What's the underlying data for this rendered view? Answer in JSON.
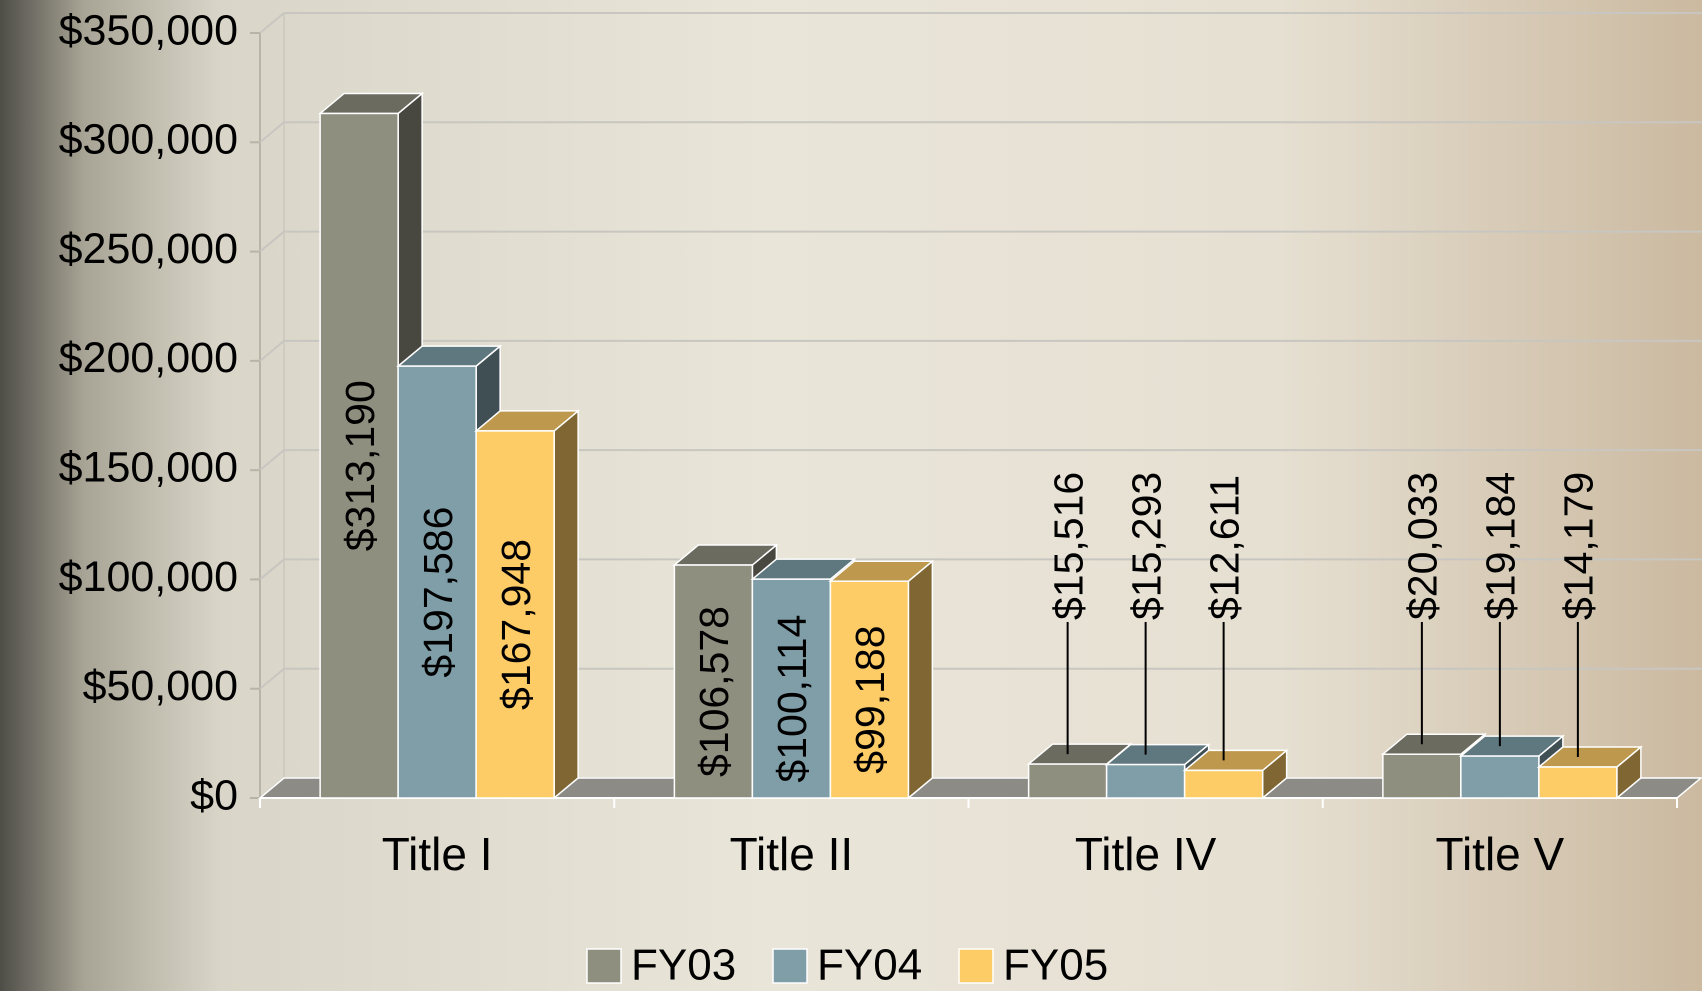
{
  "chart_data": {
    "type": "bar3d",
    "categories": [
      "Title I",
      "Title II",
      "Title IV",
      "Title V"
    ],
    "series": [
      {
        "name": "FY03",
        "color": "#8f8f80",
        "values": [
          313190,
          106578,
          15516,
          20033
        ],
        "value_labels": [
          "$313,190",
          "$106,578",
          "$15,516",
          "$20,033"
        ]
      },
      {
        "name": "FY04",
        "color": "#7f9ea8",
        "values": [
          197586,
          100114,
          15293,
          19184
        ],
        "value_labels": [
          "$197,586",
          "$100,114",
          "$15,293",
          "$19,184"
        ]
      },
      {
        "name": "FY05",
        "color": "#fdcc66",
        "values": [
          167948,
          99188,
          12611,
          14179
        ],
        "value_labels": [
          "$167,948",
          "$99,188",
          "$12,611",
          "$14,179"
        ]
      }
    ],
    "ylim": [
      0,
      350000
    ],
    "yticks": [
      {
        "value": 0,
        "label": "$0"
      },
      {
        "value": 50000,
        "label": "$50,000"
      },
      {
        "value": 100000,
        "label": "$100,000"
      },
      {
        "value": 150000,
        "label": "$150,000"
      },
      {
        "value": 200000,
        "label": "$200,000"
      },
      {
        "value": 250000,
        "label": "$250,000"
      },
      {
        "value": 300000,
        "label": "$300,000"
      },
      {
        "value": 350000,
        "label": "$350,000"
      }
    ],
    "grid": true,
    "legend": "bottom"
  }
}
